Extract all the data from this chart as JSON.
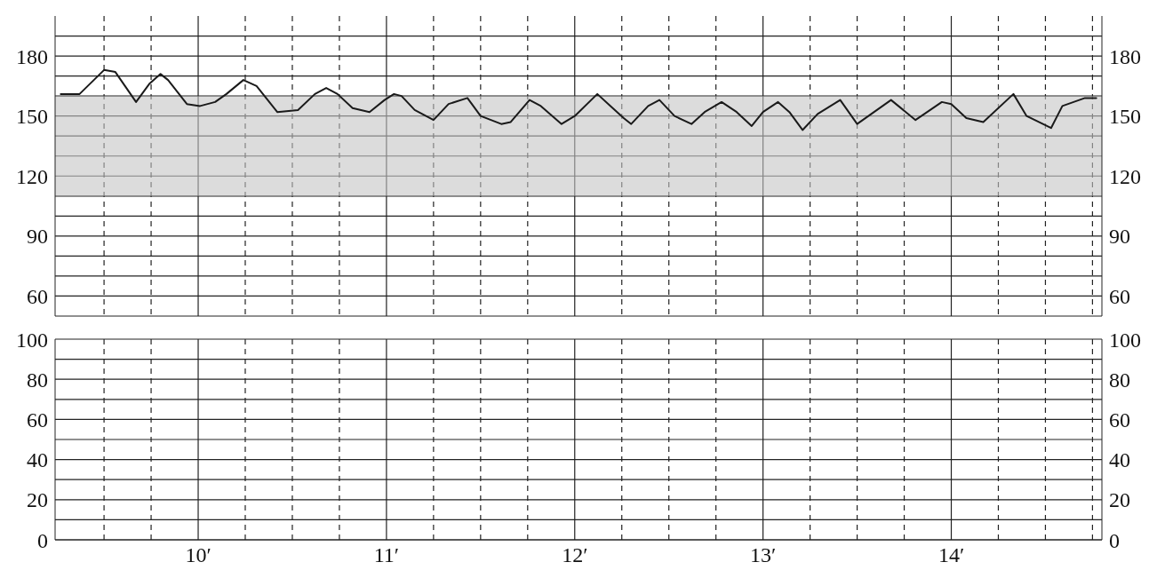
{
  "chart_data": [
    {
      "type": "line",
      "tick_labels": "y",
      "grid": true,
      "x": [
        9.27,
        9.37,
        9.5,
        9.56,
        9.67,
        9.74,
        9.8,
        9.84,
        9.94,
        10.01,
        10.09,
        10.15,
        10.24,
        10.31,
        10.42,
        10.53,
        10.62,
        10.68,
        10.74,
        10.82,
        10.91,
        10.99,
        11.04,
        11.08,
        11.15,
        11.25,
        11.33,
        11.43,
        11.5,
        11.61,
        11.66,
        11.76,
        11.82,
        11.93,
        12.0,
        12.12,
        12.19,
        12.26,
        12.3,
        12.39,
        12.45,
        12.53,
        12.62,
        12.69,
        12.78,
        12.86,
        12.94,
        13.0,
        13.08,
        13.14,
        13.21,
        13.29,
        13.41,
        13.5,
        13.56,
        13.68,
        13.81,
        13.95,
        14.0,
        14.08,
        14.17,
        14.33,
        14.4,
        14.53,
        14.59,
        14.71,
        14.77
      ],
      "series": [
        {
          "color": "#1a1a1a",
          "values": [
            161,
            161,
            173,
            172,
            157,
            166,
            171,
            168,
            156,
            155,
            157,
            161,
            168,
            165,
            152,
            153,
            161,
            164,
            161,
            154,
            152,
            158,
            161,
            160,
            153,
            148,
            156,
            159,
            150,
            146,
            147,
            158,
            155,
            146,
            150,
            161,
            155,
            149,
            146,
            155,
            158,
            150,
            146,
            152,
            157,
            152,
            145,
            152,
            157,
            152,
            143,
            151,
            158,
            146,
            150,
            158,
            148,
            157,
            156,
            149,
            147,
            161,
            150,
            144,
            155,
            159,
            159
          ]
        }
      ],
      "bands": [
        {
          "axis": "y",
          "from": 110,
          "to": 160,
          "color": "#c4c4c4"
        }
      ],
      "xlim": [
        9.24,
        14.8
      ],
      "xticks": [
        {
          "value": 9.5,
          "label": null
        },
        {
          "value": 9.75,
          "label": null
        },
        10,
        {
          "value": 10.25,
          "label": null
        },
        {
          "value": 10.5,
          "label": null
        },
        {
          "value": 10.75,
          "label": null
        },
        11,
        {
          "value": 11.25,
          "label": null
        },
        {
          "value": 11.5,
          "label": null
        },
        {
          "value": 11.75,
          "label": null
        },
        12,
        {
          "value": 12.25,
          "label": null
        },
        {
          "value": 12.5,
          "label": null
        },
        {
          "value": 12.75,
          "label": null
        },
        13,
        {
          "value": 13.25,
          "label": null
        },
        {
          "value": 13.5,
          "label": null
        },
        {
          "value": 13.75,
          "label": null
        },
        14,
        {
          "value": 14.25,
          "label": null
        },
        {
          "value": 14.5,
          "label": null
        },
        {
          "value": 14.75,
          "label": null
        }
      ],
      "ylim": [
        50,
        200
      ],
      "yticks": [
        60,
        {
          "value": 70,
          "label": null
        },
        {
          "value": 80,
          "label": null
        },
        90,
        {
          "value": 100,
          "label": null
        },
        {
          "value": 110,
          "label": null
        },
        120,
        {
          "value": 130,
          "label": null
        },
        {
          "value": 140,
          "label": null
        },
        150,
        {
          "value": 160,
          "label": null
        },
        {
          "value": 170,
          "label": null
        },
        180,
        {
          "value": 190,
          "label": null
        }
      ],
      "y2lim": [
        50,
        200
      ],
      "y2ticks": [
        60,
        {
          "value": 70,
          "label": null
        },
        {
          "value": 80,
          "label": null
        },
        90,
        {
          "value": 100,
          "label": null
        },
        {
          "value": 110,
          "label": null
        },
        120,
        {
          "value": 130,
          "label": null
        },
        {
          "value": 140,
          "label": null
        },
        150,
        {
          "value": 160,
          "label": null
        },
        {
          "value": 170,
          "label": null
        },
        180,
        {
          "value": 190,
          "label": null
        }
      ]
    },
    {
      "type": "line",
      "grid": true,
      "xlim": [
        9.24,
        14.8
      ],
      "xticks": [
        {
          "value": 9.5,
          "label": null
        },
        {
          "value": 9.75,
          "label": null
        },
        {
          "value": 10,
          "label": "10′"
        },
        {
          "value": 10.25,
          "label": null
        },
        {
          "value": 10.5,
          "label": null
        },
        {
          "value": 10.75,
          "label": null
        },
        {
          "value": 11,
          "label": "11′"
        },
        {
          "value": 11.25,
          "label": null
        },
        {
          "value": 11.5,
          "label": null
        },
        {
          "value": 11.75,
          "label": null
        },
        {
          "value": 12,
          "label": "12′"
        },
        {
          "value": 12.25,
          "label": null
        },
        {
          "value": 12.5,
          "label": null
        },
        {
          "value": 12.75,
          "label": null
        },
        {
          "value": 13,
          "label": "13′"
        },
        {
          "value": 13.25,
          "label": null
        },
        {
          "value": 13.5,
          "label": null
        },
        {
          "value": 13.75,
          "label": null
        },
        {
          "value": 14,
          "label": "14′"
        },
        {
          "value": 14.25,
          "label": null
        },
        {
          "value": 14.5,
          "label": null
        },
        {
          "value": 14.75,
          "label": null
        }
      ],
      "ylim": [
        0,
        100
      ],
      "yticks": [
        0,
        {
          "value": 10,
          "label": null
        },
        20,
        {
          "value": 30,
          "label": null
        },
        40,
        {
          "value": 50,
          "label": null
        },
        60,
        {
          "value": 70,
          "label": null
        },
        80,
        {
          "value": 90,
          "label": null
        },
        100
      ],
      "y2lim": [
        0,
        100
      ],
      "y2ticks": [
        0,
        {
          "value": 10,
          "label": null
        },
        20,
        {
          "value": 30,
          "label": null
        },
        40,
        {
          "value": 50,
          "label": null
        },
        60,
        {
          "value": 70,
          "label": null
        },
        80,
        {
          "value": 90,
          "label": null
        },
        100
      ]
    }
  ]
}
